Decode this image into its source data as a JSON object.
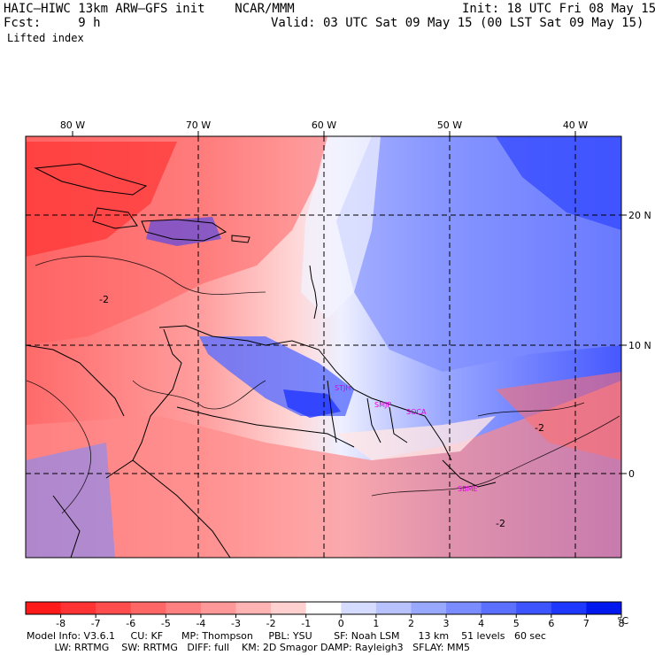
{
  "header": {
    "title": "HAIC–HIWC 13km ARW–GFS init    NCAR/MMM",
    "init": "Init: 18 UTC Fri 08 May 15",
    "fcst": "Fcst:     9 h",
    "valid": "Valid: 03 UTC Sat 09 May 15 (00 LST Sat 09 May 15)",
    "field": "Lifted index"
  },
  "map": {
    "lon_labels": [
      "80 W",
      "70 W",
      "60 W",
      "50 W",
      "40 W"
    ],
    "lat_labels": [
      "20 N",
      "10 N",
      "0"
    ],
    "contour_labels": [
      "-2",
      "-2",
      "-2"
    ],
    "stations": [
      "STJH",
      "SMJP",
      "SOCA",
      "SBME"
    ],
    "station_color": "#e000e0"
  },
  "colorbar": {
    "colors": [
      "#ff1a1a",
      "#ff3333",
      "#ff4d4d",
      "#ff6666",
      "#ff8080",
      "#ff9999",
      "#ffb3b3",
      "#ffd0d0",
      "#ffffff",
      "#d6dcff",
      "#b8c2ff",
      "#99a8ff",
      "#7a8cff",
      "#5c70ff",
      "#3d54ff",
      "#1f38ff",
      "#0018ee"
    ],
    "tick_labels": [
      "-8",
      "-7",
      "-6",
      "-5",
      "-4",
      "-3",
      "-2",
      "-1",
      "0",
      "1",
      "2",
      "3",
      "4",
      "5",
      "6",
      "7",
      "8"
    ],
    "unit": "°C"
  },
  "footer": {
    "line1": "Model Info: V3.6.1     CU: KF      MP: Thompson     PBL: YSU       SF: Noah LSM      13 km    51 levels   60 sec",
    "line2": "         LW: RRTMG    SW: RRTMG   DIFF: full    KM: 2D Smagor DAMP: Rayleigh3   SFLAY: MM5"
  }
}
